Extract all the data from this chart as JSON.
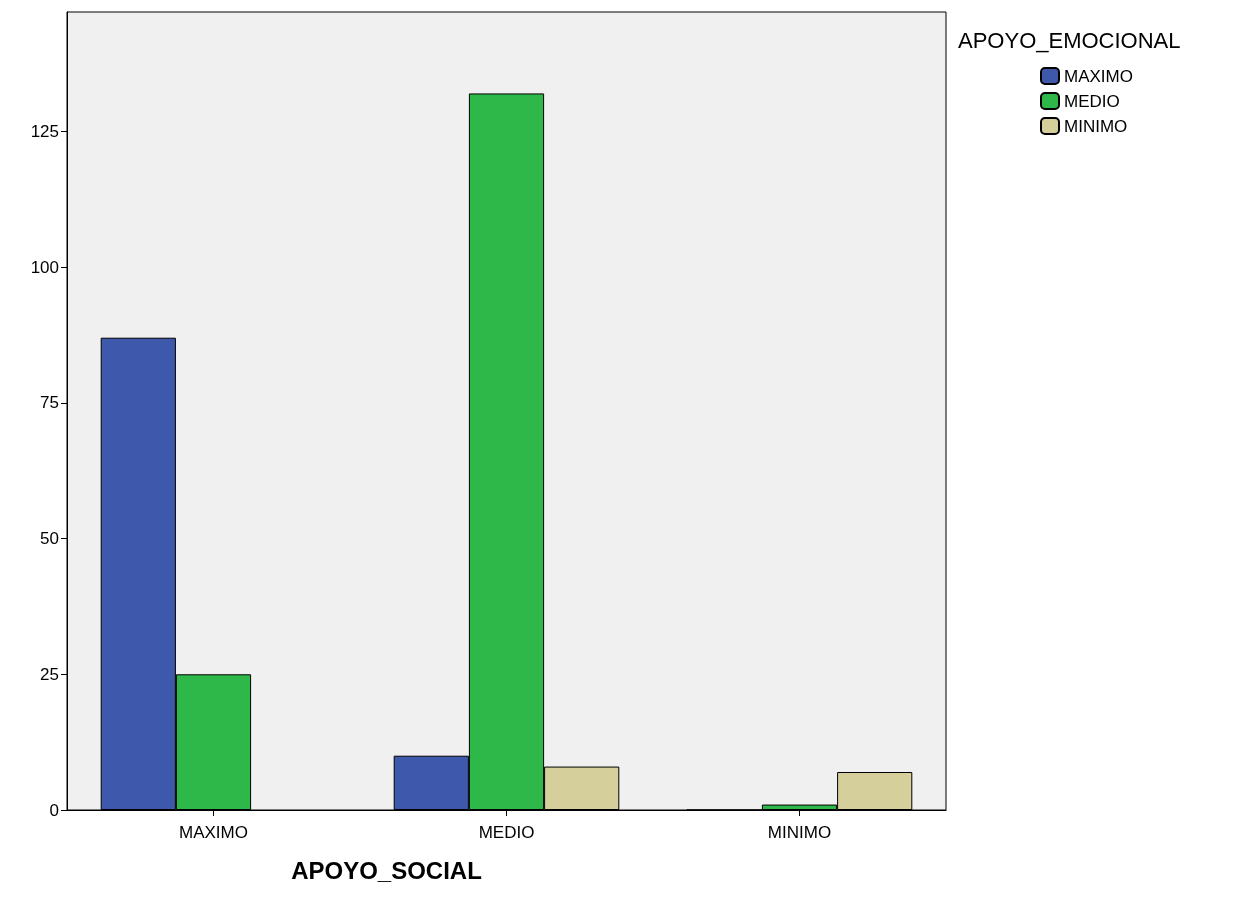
{
  "chart_data": {
    "type": "bar",
    "xlabel": "APOYO_SOCIAL",
    "legend_title": "APOYO_EMOCIONAL",
    "categories": [
      "MAXIMO",
      "MEDIO",
      "MINIMO"
    ],
    "series": [
      {
        "name": "MAXIMO",
        "color": "#3e58ac",
        "values": [
          87,
          10,
          0
        ]
      },
      {
        "name": "MEDIO",
        "color": "#2fb84a",
        "values": [
          25,
          132,
          1
        ]
      },
      {
        "name": "MINIMO",
        "color": "#d5cf9b",
        "values": [
          null,
          8,
          7
        ]
      }
    ],
    "ylim": [
      0,
      147
    ],
    "yticks": [
      0,
      25,
      50,
      75,
      100,
      125
    ],
    "grid": false,
    "legend": "top right"
  }
}
